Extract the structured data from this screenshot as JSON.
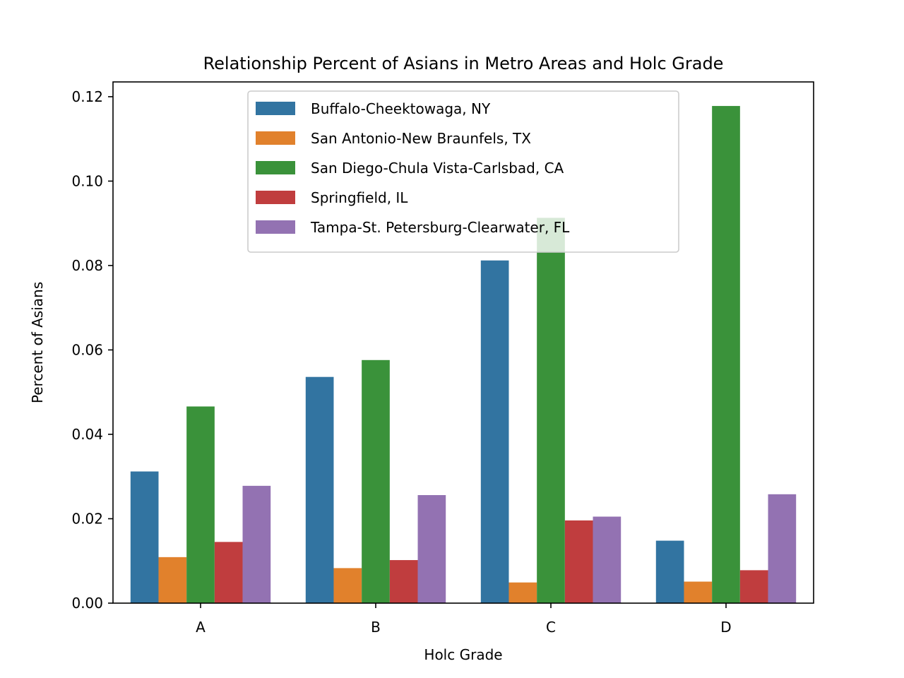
{
  "chart_data": {
    "type": "bar",
    "title": "Relationship Percent of Asians in Metro Areas and Holc Grade",
    "xlabel": "Holc Grade",
    "ylabel": "Percent of Asians",
    "categories": [
      "A",
      "B",
      "C",
      "D"
    ],
    "ylim": [
      0,
      0.1235
    ],
    "yticks": [
      "0.00",
      "0.02",
      "0.04",
      "0.06",
      "0.08",
      "0.10",
      "0.12"
    ],
    "legend_position": "top-center",
    "series": [
      {
        "name": "Buffalo-Cheektowaga, NY",
        "color": "#3274a1",
        "values": [
          0.0312,
          0.0536,
          0.0812,
          0.0148
        ]
      },
      {
        "name": "San Antonio-New Braunfels, TX",
        "color": "#e1812c",
        "values": [
          0.0109,
          0.0083,
          0.0049,
          0.0051
        ]
      },
      {
        "name": "San Diego-Chula Vista-Carlsbad, CA",
        "color": "#3a923a",
        "values": [
          0.0466,
          0.0576,
          0.0913,
          0.1178
        ]
      },
      {
        "name": "Springfield, IL",
        "color": "#c03d3e",
        "values": [
          0.0145,
          0.0102,
          0.0196,
          0.0078
        ]
      },
      {
        "name": "Tampa-St. Petersburg-Clearwater, FL",
        "color": "#9372b2",
        "values": [
          0.0278,
          0.0256,
          0.0205,
          0.0258
        ]
      }
    ]
  }
}
